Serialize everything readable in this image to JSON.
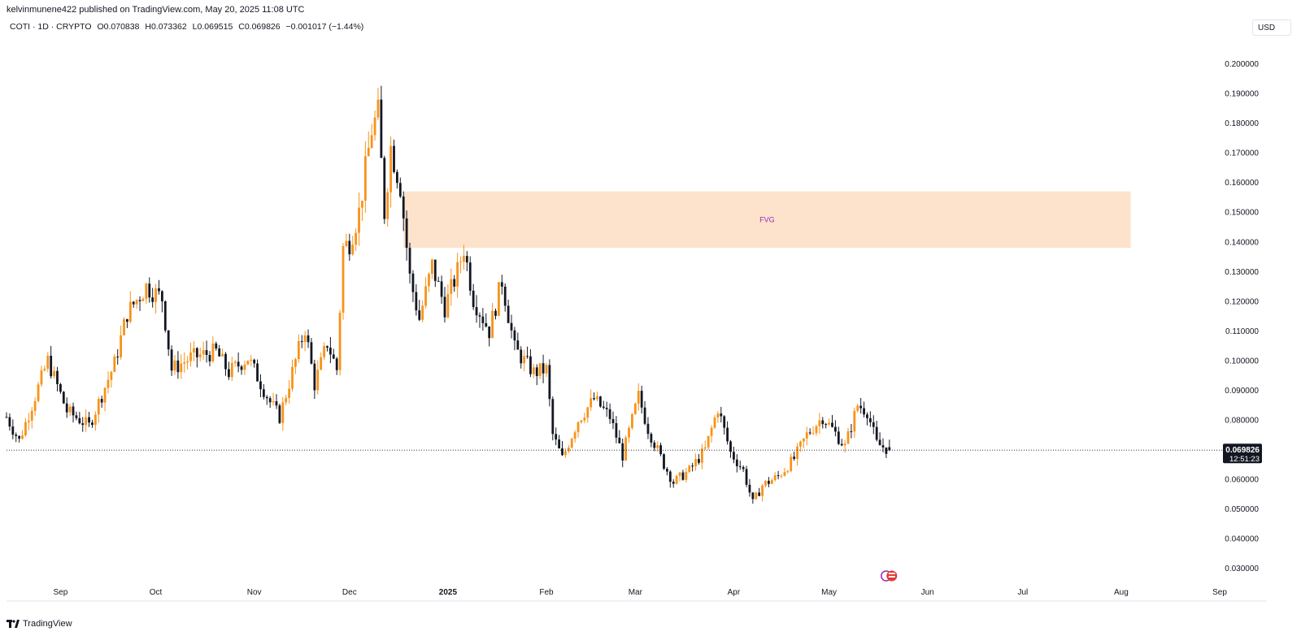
{
  "publish_line": "kelvinmunene422 published on TradingView.com, May 20, 2025 11:08 UTC",
  "legend": {
    "symbol": "COTI · 1D · CRYPTO",
    "open": "O0.070838",
    "high": "H0.073362",
    "low": "L0.069515",
    "close": "C0.069826",
    "change": "−0.001017 (−1.44%)"
  },
  "currency": "USD",
  "brand": "TradingView",
  "last_price_label": "0.069826",
  "countdown_label": "12:51:23",
  "colors": {
    "up": "#f7931a",
    "down": "#131722",
    "fvg_fill": "#fde3cc",
    "fvg_text": "#9c27b0",
    "axis_text": "#131722"
  },
  "chart_data": {
    "type": "candlestick",
    "ylim": [
      0.025,
      0.21
    ],
    "y_ticks": [
      "0.200000",
      "0.190000",
      "0.180000",
      "0.170000",
      "0.160000",
      "0.150000",
      "0.140000",
      "0.130000",
      "0.120000",
      "0.110000",
      "0.100000",
      "0.090000",
      "0.080000",
      "0.070000",
      "0.060000",
      "0.050000",
      "0.040000",
      "0.030000"
    ],
    "x_range": [
      "2024-08-15",
      "2025-09-01"
    ],
    "x_ticks": [
      {
        "date": "2024-09-01",
        "label": "Sep"
      },
      {
        "date": "2024-10-01",
        "label": "Oct"
      },
      {
        "date": "2024-11-01",
        "label": "Nov"
      },
      {
        "date": "2024-12-01",
        "label": "Dec"
      },
      {
        "date": "2025-01-01",
        "label": "2025"
      },
      {
        "date": "2025-02-01",
        "label": "Feb"
      },
      {
        "date": "2025-03-01",
        "label": "Mar"
      },
      {
        "date": "2025-04-01",
        "label": "Apr"
      },
      {
        "date": "2025-05-01",
        "label": "May"
      },
      {
        "date": "2025-06-01",
        "label": "Jun"
      },
      {
        "date": "2025-07-01",
        "label": "Jul"
      },
      {
        "date": "2025-08-01",
        "label": "Aug"
      },
      {
        "date": "2025-09-01",
        "label": "Sep"
      }
    ],
    "fvg_zone": {
      "label": "FVG",
      "from": "2024-12-18",
      "to": "2025-08-04",
      "low": 0.138,
      "high": 0.157
    },
    "last_price": 0.069826,
    "start_date": "2024-08-15",
    "end_date": "2025-05-20",
    "close_anchors": [
      [
        "2024-08-15",
        0.081
      ],
      [
        "2024-08-19",
        0.073
      ],
      [
        "2024-08-24",
        0.088
      ],
      [
        "2024-08-28",
        0.1
      ],
      [
        "2024-09-03",
        0.083
      ],
      [
        "2024-09-10",
        0.078
      ],
      [
        "2024-09-18",
        0.099
      ],
      [
        "2024-09-22",
        0.116
      ],
      [
        "2024-09-28",
        0.125
      ],
      [
        "2024-10-03",
        0.121
      ],
      [
        "2024-10-06",
        0.097
      ],
      [
        "2024-10-12",
        0.101
      ],
      [
        "2024-10-20",
        0.103
      ],
      [
        "2024-10-24",
        0.096
      ],
      [
        "2024-10-30",
        0.101
      ],
      [
        "2024-11-06",
        0.086
      ],
      [
        "2024-11-09",
        0.081
      ],
      [
        "2024-11-14",
        0.1
      ],
      [
        "2024-11-17",
        0.111
      ],
      [
        "2024-11-20",
        0.092
      ],
      [
        "2024-11-24",
        0.106
      ],
      [
        "2024-11-27",
        0.097
      ],
      [
        "2024-11-29",
        0.138
      ],
      [
        "2024-12-01",
        0.14
      ],
      [
        "2024-12-04",
        0.15
      ],
      [
        "2024-12-08",
        0.178
      ],
      [
        "2024-12-10",
        0.183
      ],
      [
        "2024-12-12",
        0.15
      ],
      [
        "2024-12-14",
        0.172
      ],
      [
        "2024-12-17",
        0.159
      ],
      [
        "2024-12-20",
        0.128
      ],
      [
        "2024-12-23",
        0.114
      ],
      [
        "2024-12-27",
        0.132
      ],
      [
        "2024-12-31",
        0.118
      ],
      [
        "2025-01-04",
        0.13
      ],
      [
        "2025-01-06",
        0.138
      ],
      [
        "2025-01-09",
        0.121
      ],
      [
        "2025-01-14",
        0.11
      ],
      [
        "2025-01-18",
        0.127
      ],
      [
        "2025-01-22",
        0.104
      ],
      [
        "2025-01-28",
        0.096
      ],
      [
        "2025-02-01",
        0.097
      ],
      [
        "2025-02-03",
        0.075
      ],
      [
        "2025-02-06",
        0.067
      ],
      [
        "2025-02-11",
        0.08
      ],
      [
        "2025-02-16",
        0.087
      ],
      [
        "2025-02-21",
        0.081
      ],
      [
        "2025-02-25",
        0.068
      ],
      [
        "2025-03-02",
        0.088
      ],
      [
        "2025-03-05",
        0.077
      ],
      [
        "2025-03-10",
        0.065
      ],
      [
        "2025-03-13",
        0.059
      ],
      [
        "2025-03-18",
        0.063
      ],
      [
        "2025-03-23",
        0.07
      ],
      [
        "2025-03-27",
        0.084
      ],
      [
        "2025-03-31",
        0.069
      ],
      [
        "2025-04-04",
        0.063
      ],
      [
        "2025-04-07",
        0.052
      ],
      [
        "2025-04-10",
        0.058
      ],
      [
        "2025-04-15",
        0.061
      ],
      [
        "2025-04-20",
        0.067
      ],
      [
        "2025-04-24",
        0.075
      ],
      [
        "2025-04-29",
        0.081
      ],
      [
        "2025-05-02",
        0.077
      ],
      [
        "2025-05-06",
        0.071
      ],
      [
        "2025-05-10",
        0.085
      ],
      [
        "2025-05-13",
        0.083
      ],
      [
        "2025-05-16",
        0.072
      ],
      [
        "2025-05-20",
        0.0698
      ]
    ]
  }
}
